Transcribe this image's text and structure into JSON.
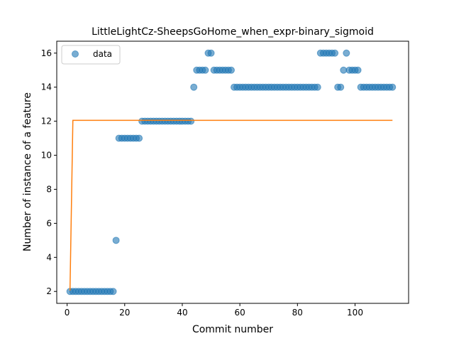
{
  "chart_data": {
    "type": "scatter",
    "title": "LittleLightCz-SheepsGoHome_when_expr-binary_sigmoid",
    "xlabel": "Commit number",
    "ylabel": "Number of instance of a feature",
    "xlim": [
      -3.6,
      118.6
    ],
    "ylim": [
      1.3,
      16.7
    ],
    "xticks": [
      0,
      20,
      40,
      60,
      80,
      100
    ],
    "yticks": [
      2,
      4,
      6,
      8,
      10,
      12,
      14,
      16
    ],
    "grid": false,
    "legend": {
      "position": "top-left",
      "entries": [
        "data"
      ]
    },
    "colors": {
      "data": "#1f77b4",
      "fit": "#ff7f0e"
    },
    "series": [
      {
        "name": "data",
        "kind": "scatter",
        "x": [
          1,
          2,
          3,
          4,
          5,
          6,
          7,
          8,
          9,
          10,
          11,
          12,
          13,
          14,
          15,
          16,
          17,
          18,
          19,
          20,
          21,
          22,
          23,
          24,
          25,
          26,
          27,
          28,
          29,
          30,
          31,
          32,
          33,
          34,
          35,
          36,
          37,
          38,
          39,
          40,
          41,
          42,
          43,
          44,
          45,
          46,
          47,
          48,
          49,
          50,
          51,
          52,
          53,
          54,
          55,
          56,
          57,
          58,
          59,
          60,
          61,
          62,
          63,
          64,
          65,
          66,
          67,
          68,
          69,
          70,
          71,
          72,
          73,
          74,
          75,
          76,
          77,
          78,
          79,
          80,
          81,
          82,
          83,
          84,
          85,
          86,
          87,
          88,
          89,
          90,
          91,
          92,
          93,
          94,
          95,
          96,
          97,
          98,
          99,
          100,
          101,
          102,
          103,
          104,
          105,
          106,
          107,
          108,
          109,
          110,
          111,
          112,
          113
        ],
        "y": [
          2,
          2,
          2,
          2,
          2,
          2,
          2,
          2,
          2,
          2,
          2,
          2,
          2,
          2,
          2,
          2,
          5,
          11,
          11,
          11,
          11,
          11,
          11,
          11,
          11,
          12,
          12,
          12,
          12,
          12,
          12,
          12,
          12,
          12,
          12,
          12,
          12,
          12,
          12,
          12,
          12,
          12,
          12,
          14,
          15,
          15,
          15,
          15,
          16,
          16,
          15,
          15,
          15,
          15,
          15,
          15,
          15,
          14,
          14,
          14,
          14,
          14,
          14,
          14,
          14,
          14,
          14,
          14,
          14,
          14,
          14,
          14,
          14,
          14,
          14,
          14,
          14,
          14,
          14,
          14,
          14,
          14,
          14,
          14,
          14,
          14,
          14,
          16,
          16,
          16,
          16,
          16,
          16,
          14,
          14,
          15,
          16,
          15,
          15,
          15,
          15,
          14,
          14,
          14,
          14,
          14,
          14,
          14,
          14,
          14,
          14,
          14,
          14
        ]
      },
      {
        "name": "",
        "kind": "line",
        "x": [
          1,
          2,
          113
        ],
        "y": [
          2.05,
          12.05,
          12.05
        ]
      }
    ]
  }
}
